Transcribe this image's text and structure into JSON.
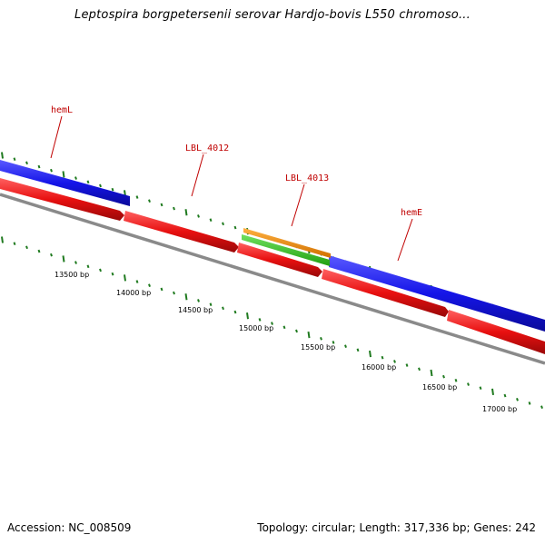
{
  "title": "Leptospira borgpetersenii serovar Hardjo-bovis L550 chromoso...",
  "footer": {
    "accession": "Accession: NC_008509",
    "topology": "Topology: circular; Length: 317,336 bp; Genes: 242"
  },
  "gene_labels": [
    "hemL",
    "LBL_4012",
    "LBL_4013",
    "hemE"
  ],
  "ruler_labels": [
    "13500 bp",
    "14000 bp",
    "14500 bp",
    "15000 bp",
    "15500 bp",
    "16000 bp",
    "16500 bp",
    "17000 bp"
  ],
  "colors": {
    "forward_cds": "#1010e0",
    "reverse_cds": "#e01010",
    "orange_feature": "#f08a00",
    "green_feature": "#30c020",
    "backbone": "#808080",
    "tick": "#1a7a1a",
    "label": "#c00000"
  }
}
